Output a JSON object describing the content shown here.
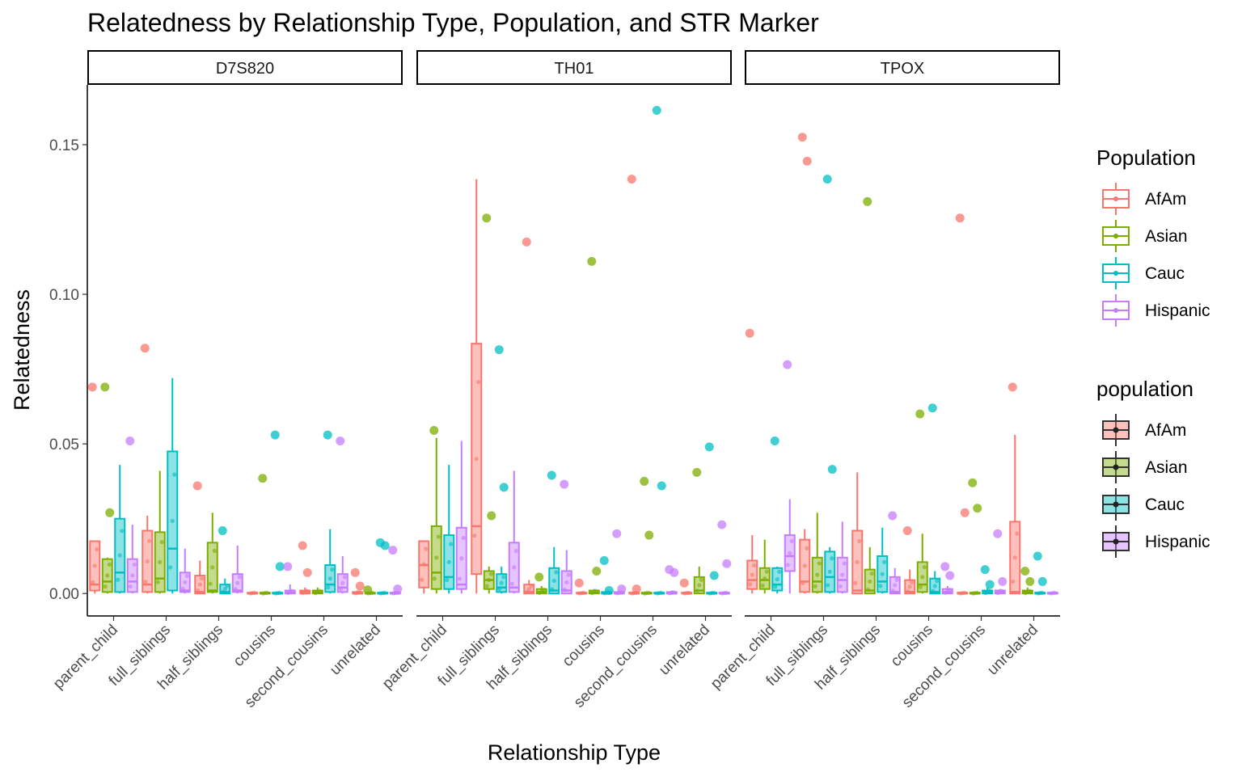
{
  "chart_data": {
    "type": "boxplot",
    "title": "Relatedness by Relationship Type, Population, and STR Marker",
    "xlabel": "Relationship Type",
    "ylabel": "Relatedness",
    "ylim": [
      -0.0075,
      0.17
    ],
    "yticks": [
      0.0,
      0.05,
      0.1,
      0.15
    ],
    "ytick_labels": [
      "0.00",
      "0.05",
      "0.10",
      "0.15"
    ],
    "categories": [
      "parent_child",
      "full_siblings",
      "half_siblings",
      "cousins",
      "second_cousins",
      "unrelated"
    ],
    "populations": [
      "AfAm",
      "Asian",
      "Cauc",
      "Hispanic"
    ],
    "colors": {
      "AfAm": "#F8766D",
      "Asian": "#7CAE00",
      "Cauc": "#00BFC4",
      "Hispanic": "#C77CFF"
    },
    "legends": [
      {
        "title": "Population",
        "entries": [
          "AfAm",
          "Asian",
          "Cauc",
          "Hispanic"
        ]
      },
      {
        "title": "population",
        "entries": [
          "AfAm",
          "Asian",
          "Cauc",
          "Hispanic"
        ]
      }
    ],
    "panels": [
      {
        "name": "D7S820",
        "groups": [
          [
            {
              "q1": 0.001,
              "med": 0.003,
              "q3": 0.0175,
              "lo": 0,
              "hi": 0.0175,
              "out": [
                0.069
              ]
            },
            {
              "q1": 0.0005,
              "med": 0.004,
              "q3": 0.0115,
              "lo": 0,
              "hi": 0.012,
              "out": [
                0.069,
                0.027
              ]
            },
            {
              "q1": 0.0005,
              "med": 0.007,
              "q3": 0.025,
              "lo": 0,
              "hi": 0.043,
              "out": []
            },
            {
              "q1": 0.0005,
              "med": 0.004,
              "q3": 0.0115,
              "lo": 0,
              "hi": 0.023,
              "out": [
                0.051
              ]
            }
          ],
          [
            {
              "q1": 0.0005,
              "med": 0.003,
              "q3": 0.021,
              "lo": 0,
              "hi": 0.026,
              "out": [
                0.082
              ]
            },
            {
              "q1": 0.0005,
              "med": 0.005,
              "q3": 0.0205,
              "lo": 0,
              "hi": 0.041,
              "out": []
            },
            {
              "q1": 0.001,
              "med": 0.015,
              "q3": 0.0475,
              "lo": 0,
              "hi": 0.072,
              "out": []
            },
            {
              "q1": 0.0005,
              "med": 0.001,
              "q3": 0.007,
              "lo": 0,
              "hi": 0.015,
              "out": []
            }
          ],
          [
            {
              "q1": 0,
              "med": 0.0005,
              "q3": 0.006,
              "lo": 0,
              "hi": 0.011,
              "out": [
                0.036
              ]
            },
            {
              "q1": 0.0005,
              "med": 0.001,
              "q3": 0.017,
              "lo": 0,
              "hi": 0.027,
              "out": []
            },
            {
              "q1": 0,
              "med": 0.0005,
              "q3": 0.003,
              "lo": 0,
              "hi": 0.005,
              "out": [
                0.021
              ]
            },
            {
              "q1": 0.0005,
              "med": 0.001,
              "q3": 0.0065,
              "lo": 0,
              "hi": 0.016,
              "out": []
            }
          ],
          [
            {
              "q1": 0,
              "med": 0,
              "q3": 0.0003,
              "lo": 0,
              "hi": 0.0006,
              "out": []
            },
            {
              "q1": 0,
              "med": 0,
              "q3": 0.0003,
              "lo": 0,
              "hi": 0.0006,
              "out": [
                0.0385
              ]
            },
            {
              "q1": 0,
              "med": 0,
              "q3": 0.0003,
              "lo": 0,
              "hi": 0.0006,
              "out": [
                0.053,
                0.009
              ]
            },
            {
              "q1": 0,
              "med": 0.0003,
              "q3": 0.001,
              "lo": 0,
              "hi": 0.003,
              "out": [
                0.009
              ]
            }
          ],
          [
            {
              "q1": 0,
              "med": 0.0005,
              "q3": 0.001,
              "lo": 0,
              "hi": 0.002,
              "out": [
                0.016,
                0.007
              ]
            },
            {
              "q1": 0,
              "med": 0.0005,
              "q3": 0.001,
              "lo": 0,
              "hi": 0.002,
              "out": []
            },
            {
              "q1": 0.0005,
              "med": 0.003,
              "q3": 0.0095,
              "lo": 0,
              "hi": 0.0215,
              "out": [
                0.053
              ]
            },
            {
              "q1": 0.0005,
              "med": 0.002,
              "q3": 0.0065,
              "lo": 0,
              "hi": 0.0125,
              "out": [
                0.051
              ]
            }
          ],
          [
            {
              "q1": 0,
              "med": 0,
              "q3": 0.0005,
              "lo": 0,
              "hi": 0.001,
              "out": [
                0.007,
                0.0025
              ]
            },
            {
              "q1": 0,
              "med": 0,
              "q3": 0.0003,
              "lo": 0,
              "hi": 0.0006,
              "out": [
                0.0012
              ]
            },
            {
              "q1": 0,
              "med": 0,
              "q3": 0.0003,
              "lo": 0,
              "hi": 0.0006,
              "out": [
                0.017,
                0.016
              ]
            },
            {
              "q1": 0,
              "med": 0,
              "q3": 0.0003,
              "lo": 0,
              "hi": 0.0006,
              "out": [
                0.0145,
                0.0015
              ]
            }
          ]
        ]
      },
      {
        "name": "TH01",
        "groups": [
          [
            {
              "q1": 0.002,
              "med": 0.0095,
              "q3": 0.0175,
              "lo": 0,
              "hi": 0.0175,
              "out": []
            },
            {
              "q1": 0.0015,
              "med": 0.007,
              "q3": 0.0225,
              "lo": 0,
              "hi": 0.052,
              "out": [
                0.0545
              ]
            },
            {
              "q1": 0.0015,
              "med": 0.0055,
              "q3": 0.0195,
              "lo": 0,
              "hi": 0.043,
              "out": []
            },
            {
              "q1": 0.0015,
              "med": 0.003,
              "q3": 0.022,
              "lo": 0,
              "hi": 0.051,
              "out": []
            }
          ],
          [
            {
              "q1": 0.0065,
              "med": 0.0225,
              "q3": 0.0835,
              "lo": 0,
              "hi": 0.1385,
              "out": []
            },
            {
              "q1": 0.0015,
              "med": 0.0045,
              "q3": 0.0075,
              "lo": 0,
              "hi": 0.009,
              "out": [
                0.1255,
                0.026
              ]
            },
            {
              "q1": 0.0005,
              "med": 0.002,
              "q3": 0.0065,
              "lo": 0,
              "hi": 0.009,
              "out": [
                0.0815,
                0.0355
              ]
            },
            {
              "q1": 0.0005,
              "med": 0.002,
              "q3": 0.017,
              "lo": 0,
              "hi": 0.041,
              "out": []
            }
          ],
          [
            {
              "q1": 0,
              "med": 0.0005,
              "q3": 0.003,
              "lo": 0,
              "hi": 0.0045,
              "out": [
                0.1175
              ]
            },
            {
              "q1": 0,
              "med": 0.0005,
              "q3": 0.0015,
              "lo": 0,
              "hi": 0.0025,
              "out": [
                0.0055
              ]
            },
            {
              "q1": 0,
              "med": 0.001,
              "q3": 0.0085,
              "lo": 0,
              "hi": 0.0155,
              "out": [
                0.0395
              ]
            },
            {
              "q1": 0,
              "med": 0.001,
              "q3": 0.0075,
              "lo": 0,
              "hi": 0.0145,
              "out": [
                0.0365
              ]
            }
          ],
          [
            {
              "q1": 0,
              "med": 0,
              "q3": 0.0003,
              "lo": 0,
              "hi": 0.0006,
              "out": [
                0.0035
              ]
            },
            {
              "q1": 0,
              "med": 0.0003,
              "q3": 0.001,
              "lo": 0,
              "hi": 0.0015,
              "out": [
                0.111,
                0.0075
              ]
            },
            {
              "q1": 0,
              "med": 0,
              "q3": 0.0005,
              "lo": 0,
              "hi": 0.001,
              "out": [
                0.011,
                0.001
              ]
            },
            {
              "q1": 0,
              "med": 0,
              "q3": 0.0005,
              "lo": 0,
              "hi": 0.001,
              "out": [
                0.02,
                0.0015
              ]
            }
          ],
          [
            {
              "q1": 0,
              "med": 0,
              "q3": 0.0003,
              "lo": 0,
              "hi": 0.0006,
              "out": [
                0.1385,
                0.0015
              ]
            },
            {
              "q1": 0,
              "med": 0,
              "q3": 0.0003,
              "lo": 0,
              "hi": 0.0006,
              "out": [
                0.0375,
                0.0195
              ]
            },
            {
              "q1": 0,
              "med": 0,
              "q3": 0.0003,
              "lo": 0,
              "hi": 0.0006,
              "out": [
                0.1615,
                0.036
              ]
            },
            {
              "q1": 0,
              "med": 0,
              "q3": 0.0005,
              "lo": 0,
              "hi": 0.001,
              "out": [
                0.008,
                0.007
              ]
            }
          ],
          [
            {
              "q1": 0,
              "med": 0,
              "q3": 0.0003,
              "lo": 0,
              "hi": 0.0006,
              "out": [
                0.0035
              ]
            },
            {
              "q1": 0,
              "med": 0.001,
              "q3": 0.0055,
              "lo": 0,
              "hi": 0.009,
              "out": [
                0.0405
              ]
            },
            {
              "q1": 0,
              "med": 0,
              "q3": 0.0003,
              "lo": 0,
              "hi": 0.0006,
              "out": [
                0.049,
                0.006
              ]
            },
            {
              "q1": 0,
              "med": 0,
              "q3": 0.0003,
              "lo": 0,
              "hi": 0.0006,
              "out": [
                0.023,
                0.01
              ]
            }
          ]
        ]
      },
      {
        "name": "TPOX",
        "groups": [
          [
            {
              "q1": 0.0015,
              "med": 0.0045,
              "q3": 0.011,
              "lo": 0,
              "hi": 0.0195,
              "out": [
                0.087
              ]
            },
            {
              "q1": 0.0015,
              "med": 0.0045,
              "q3": 0.0085,
              "lo": 0,
              "hi": 0.018,
              "out": []
            },
            {
              "q1": 0.001,
              "med": 0.003,
              "q3": 0.0085,
              "lo": 0,
              "hi": 0.009,
              "out": [
                0.051
              ]
            },
            {
              "q1": 0.0075,
              "med": 0.0125,
              "q3": 0.0195,
              "lo": 0,
              "hi": 0.0315,
              "out": [
                0.0765
              ]
            }
          ],
          [
            {
              "q1": 0.0005,
              "med": 0.004,
              "q3": 0.018,
              "lo": 0,
              "hi": 0.0215,
              "out": [
                0.1525,
                0.1445
              ]
            },
            {
              "q1": 0.0005,
              "med": 0.004,
              "q3": 0.012,
              "lo": 0,
              "hi": 0.027,
              "out": []
            },
            {
              "q1": 0.0005,
              "med": 0.0055,
              "q3": 0.014,
              "lo": 0,
              "hi": 0.0155,
              "out": [
                0.1385,
                0.0415
              ]
            },
            {
              "q1": 0.0005,
              "med": 0.0045,
              "q3": 0.012,
              "lo": 0,
              "hi": 0.024,
              "out": []
            }
          ],
          [
            {
              "q1": 0,
              "med": 0.001,
              "q3": 0.021,
              "lo": 0,
              "hi": 0.0405,
              "out": []
            },
            {
              "q1": 0,
              "med": 0.001,
              "q3": 0.008,
              "lo": 0,
              "hi": 0.0155,
              "out": [
                0.131
              ]
            },
            {
              "q1": 0.0005,
              "med": 0.004,
              "q3": 0.0125,
              "lo": 0,
              "hi": 0.022,
              "out": []
            },
            {
              "q1": 0,
              "med": 0.0005,
              "q3": 0.0055,
              "lo": 0,
              "hi": 0.0085,
              "out": [
                0.026
              ]
            }
          ],
          [
            {
              "q1": 0,
              "med": 0.0005,
              "q3": 0.0045,
              "lo": 0,
              "hi": 0.008,
              "out": [
                0.021
              ]
            },
            {
              "q1": 0.0005,
              "med": 0.003,
              "q3": 0.0105,
              "lo": 0,
              "hi": 0.02,
              "out": [
                0.06
              ]
            },
            {
              "q1": 0,
              "med": 0.0005,
              "q3": 0.005,
              "lo": 0,
              "hi": 0.0075,
              "out": [
                0.062
              ]
            },
            {
              "q1": 0,
              "med": 0.0005,
              "q3": 0.0015,
              "lo": 0,
              "hi": 0.0025,
              "out": [
                0.009,
                0.006
              ]
            }
          ],
          [
            {
              "q1": 0,
              "med": 0,
              "q3": 0.0003,
              "lo": 0,
              "hi": 0.0006,
              "out": [
                0.1255,
                0.027
              ]
            },
            {
              "q1": 0,
              "med": 0,
              "q3": 0.0003,
              "lo": 0,
              "hi": 0.0006,
              "out": [
                0.037,
                0.0285
              ]
            },
            {
              "q1": 0,
              "med": 0.0005,
              "q3": 0.001,
              "lo": 0,
              "hi": 0.002,
              "out": [
                0.008,
                0.003
              ]
            },
            {
              "q1": 0,
              "med": 0.0005,
              "q3": 0.001,
              "lo": 0,
              "hi": 0.0015,
              "out": [
                0.02,
                0.004
              ]
            }
          ],
          [
            {
              "q1": 0,
              "med": 0.0005,
              "q3": 0.024,
              "lo": 0,
              "hi": 0.053,
              "out": [
                0.069
              ]
            },
            {
              "q1": 0,
              "med": 0.0005,
              "q3": 0.001,
              "lo": 0,
              "hi": 0.002,
              "out": [
                0.0075,
                0.004
              ]
            },
            {
              "q1": 0,
              "med": 0,
              "q3": 0.0003,
              "lo": 0,
              "hi": 0.0006,
              "out": [
                0.0125,
                0.004
              ]
            },
            {
              "q1": 0,
              "med": 0,
              "q3": 0.0003,
              "lo": 0,
              "hi": 0.0006,
              "out": []
            }
          ]
        ]
      }
    ]
  }
}
